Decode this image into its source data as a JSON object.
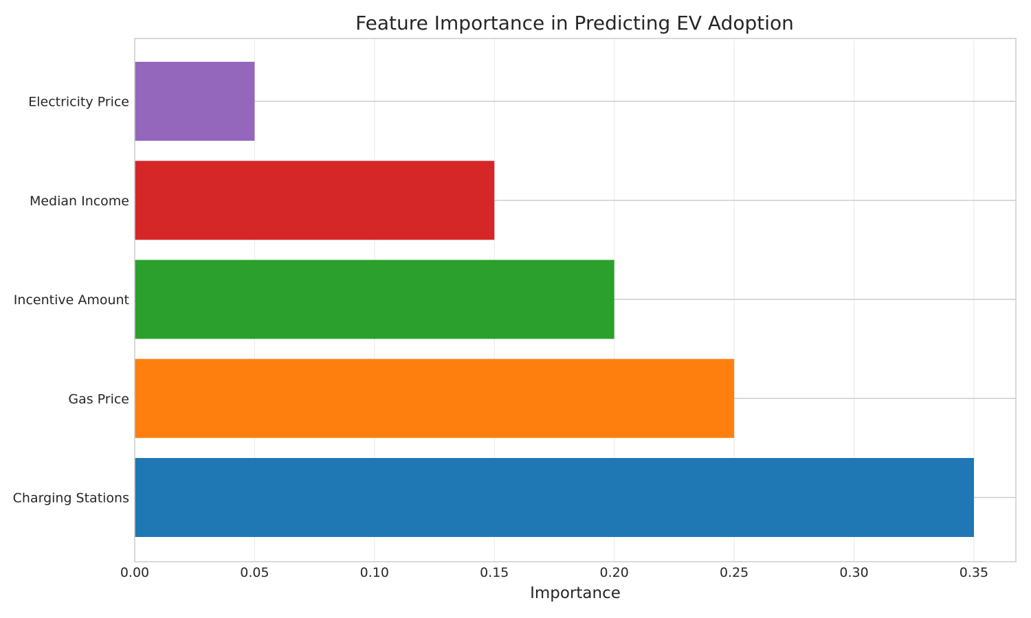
{
  "chart_data": {
    "type": "bar",
    "orientation": "horizontal",
    "title": "Feature Importance in Predicting EV Adoption",
    "xlabel": "Importance",
    "ylabel": "",
    "categories": [
      "Charging Stations",
      "Gas Price",
      "Incentive Amount",
      "Median Income",
      "Electricity Price"
    ],
    "values": [
      0.35,
      0.25,
      0.2,
      0.15,
      0.05
    ],
    "colors": [
      "#1f77b4",
      "#ff7f0e",
      "#2ca02c",
      "#d62728",
      "#9467bd"
    ],
    "xlim": [
      0,
      0.3675
    ],
    "xticks": [
      0.0,
      0.05,
      0.1,
      0.15,
      0.2,
      0.25,
      0.3,
      0.35
    ],
    "xtick_labels": [
      "0.00",
      "0.05",
      "0.10",
      "0.15",
      "0.20",
      "0.25",
      "0.30",
      "0.35"
    ],
    "grid": true,
    "legend": "none"
  }
}
